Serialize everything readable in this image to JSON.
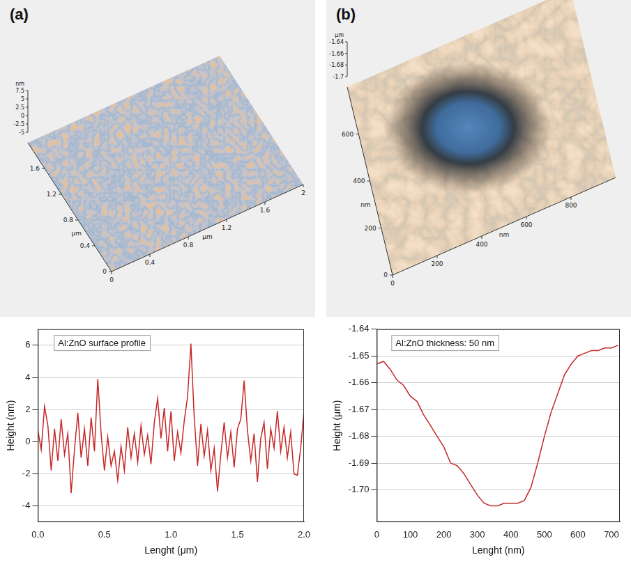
{
  "surfaces": [
    {
      "panel": "(a)",
      "x_unit": "μm",
      "y_unit": "μm",
      "z_unit": "nm",
      "xlim": [
        0,
        2
      ],
      "ylim": [
        0,
        2
      ],
      "zlim": [
        -5,
        7.5
      ],
      "xticks": [
        0,
        0.4,
        0.8,
        1.2,
        1.6,
        2
      ],
      "yticks": [
        0,
        0.4,
        0.8,
        1.2,
        1.6
      ],
      "zticks": [
        -5,
        -2.5,
        0,
        2.5,
        5,
        7.5
      ]
    },
    {
      "panel": "(b)",
      "x_unit": "nm",
      "y_unit": "nm",
      "z_unit": "μm",
      "xlim": [
        0,
        1000
      ],
      "ylim": [
        0,
        800
      ],
      "zlim": [
        -1.7,
        -1.64
      ],
      "xticks": [
        0,
        200,
        400,
        600,
        800
      ],
      "yticks": [
        0,
        200,
        400,
        600
      ],
      "zticks": [
        -1.7,
        -1.68,
        -1.66,
        -1.64
      ]
    }
  ],
  "chart_data": [
    {
      "type": "line",
      "annotation": "Al:ZnO surface profile",
      "xlabel": "Lenght (μm)",
      "ylabel": "Height (nm)",
      "color": "#c62828",
      "grid": "y",
      "xlim": [
        0,
        2
      ],
      "xticks": [
        {
          "value": 0,
          "label": "0.0"
        },
        {
          "value": 0.5,
          "label": "0.5"
        },
        {
          "value": 1,
          "label": "1.0"
        },
        {
          "value": 1.5,
          "label": "1.5"
        },
        {
          "value": 2,
          "label": "2.0"
        }
      ],
      "ylim": [
        -5,
        7
      ],
      "yticks": [
        -4,
        -2,
        0,
        2,
        4,
        6
      ],
      "x": [
        0,
        0.025,
        0.05,
        0.075,
        0.1,
        0.125,
        0.15,
        0.175,
        0.2,
        0.225,
        0.25,
        0.275,
        0.3,
        0.325,
        0.35,
        0.375,
        0.4,
        0.425,
        0.45,
        0.475,
        0.5,
        0.525,
        0.55,
        0.575,
        0.6,
        0.625,
        0.65,
        0.675,
        0.7,
        0.725,
        0.75,
        0.775,
        0.8,
        0.825,
        0.85,
        0.875,
        0.9,
        0.925,
        0.95,
        0.975,
        1,
        1.025,
        1.05,
        1.075,
        1.1,
        1.125,
        1.15,
        1.175,
        1.2,
        1.225,
        1.25,
        1.275,
        1.3,
        1.325,
        1.35,
        1.375,
        1.4,
        1.425,
        1.45,
        1.475,
        1.5,
        1.525,
        1.55,
        1.575,
        1.6,
        1.625,
        1.65,
        1.675,
        1.7,
        1.725,
        1.75,
        1.775,
        1.8,
        1.825,
        1.85,
        1.875,
        1.9,
        1.925,
        1.95,
        1.975,
        2
      ],
      "values": [
        0.7,
        -0.5,
        2.2,
        1.0,
        -1.8,
        0.8,
        -1.2,
        1.4,
        -0.8,
        0.5,
        -3.2,
        -0.5,
        1.8,
        -1.0,
        0.8,
        -1.5,
        1.5,
        -0.6,
        3.9,
        0.5,
        -1.8,
        0.3,
        -1.5,
        -0.6,
        -2.4,
        -0.3,
        -1.8,
        0.9,
        -1.0,
        0.5,
        -1.3,
        1.0,
        -0.8,
        0.4,
        -1.4,
        1.2,
        2.7,
        0.2,
        2.1,
        -0.6,
        1.9,
        -1.2,
        0.6,
        -0.7,
        1.3,
        2.8,
        6.1,
        1.5,
        -1.5,
        1.1,
        -0.9,
        0.7,
        -1.8,
        -0.4,
        -3.1,
        -0.8,
        1.2,
        -1.0,
        0.6,
        -1.6,
        0.8,
        1.4,
        3.8,
        0.7,
        -1.2,
        0.5,
        -2.5,
        0.2,
        1.2,
        -1.7,
        0.8,
        -0.4,
        1.9,
        -0.6,
        0.9,
        -1.0,
        0.6,
        -2.0,
        -2.1,
        -0.4,
        1.9
      ]
    },
    {
      "type": "line",
      "annotation": "Al:ZnO thickness: 50 nm",
      "xlabel": "Lenght (nm)",
      "ylabel": "Height (μm)",
      "color": "#c62828",
      "grid": "y",
      "xlim": [
        0,
        725
      ],
      "xticks": [
        0,
        100,
        200,
        300,
        400,
        500,
        600,
        700
      ],
      "ylim": [
        -1.712,
        -1.64
      ],
      "yticks": [
        -1.64,
        -1.65,
        -1.66,
        -1.67,
        -1.68,
        -1.69,
        {
          "value": -1.7,
          "label": "-1.70"
        }
      ],
      "x": [
        0,
        20,
        40,
        60,
        80,
        100,
        120,
        140,
        160,
        180,
        200,
        220,
        240,
        260,
        280,
        300,
        320,
        340,
        360,
        380,
        400,
        420,
        440,
        460,
        480,
        500,
        520,
        540,
        560,
        580,
        600,
        620,
        640,
        660,
        680,
        700,
        720
      ],
      "values": [
        -1.653,
        -1.652,
        -1.655,
        -1.659,
        -1.661,
        -1.665,
        -1.667,
        -1.672,
        -1.676,
        -1.68,
        -1.684,
        -1.69,
        -1.691,
        -1.694,
        -1.698,
        -1.702,
        -1.705,
        -1.706,
        -1.706,
        -1.705,
        -1.705,
        -1.705,
        -1.704,
        -1.699,
        -1.69,
        -1.68,
        -1.671,
        -1.664,
        -1.657,
        -1.653,
        -1.65,
        -1.649,
        -1.648,
        -1.648,
        -1.647,
        -1.647,
        -1.646
      ]
    }
  ]
}
